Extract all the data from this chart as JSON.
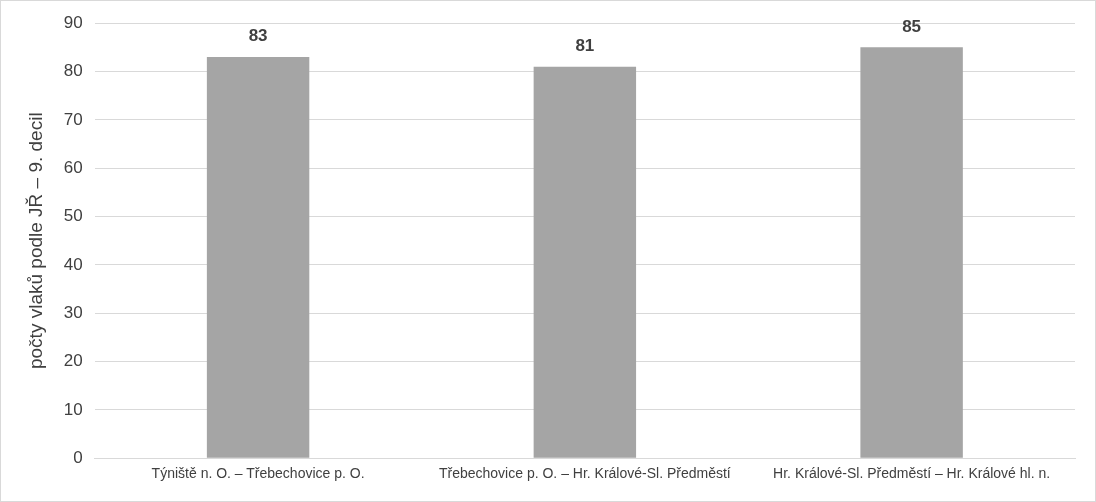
{
  "chart_data": {
    "type": "bar",
    "categories": [
      "Týniště n. O. – Třebechovice p. O.",
      "Třebechovice p. O. – Hr. Králové-Sl. Předměstí",
      "Hr. Králové-Sl. Předměstí – Hr. Králové hl. n."
    ],
    "values": [
      83,
      81,
      85
    ],
    "color": "#a5a5a5",
    "ylabel": "počty vlaků podle JŘ – 9. decil",
    "ylim": [
      0,
      90
    ],
    "yticks": [
      0,
      10,
      20,
      30,
      40,
      50,
      60,
      70,
      80,
      90
    ],
    "grid": "y",
    "legend": false,
    "data_labels": true
  }
}
